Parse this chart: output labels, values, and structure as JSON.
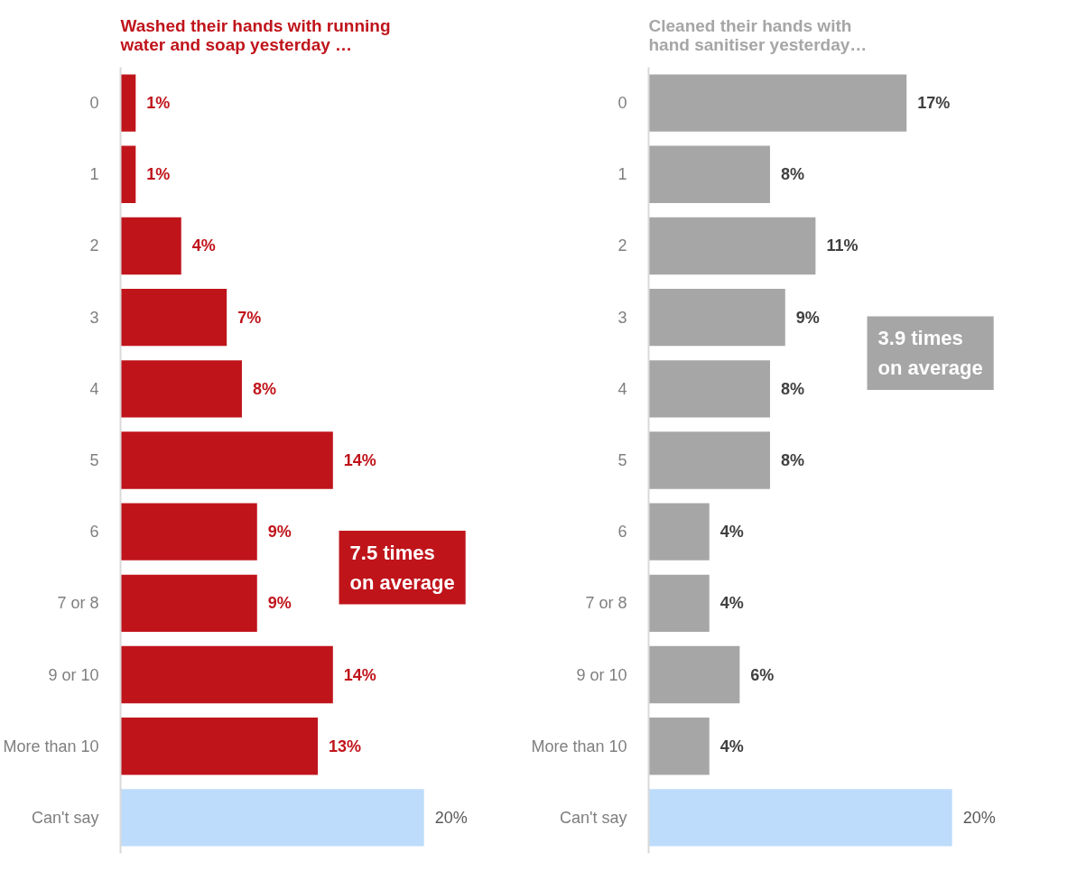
{
  "chart_data": [
    {
      "type": "bar",
      "orientation": "horizontal",
      "title": "Washed their hands with running water and soap yesterday …",
      "categories": [
        "0",
        "1",
        "2",
        "3",
        "4",
        "5",
        "6",
        "7 or 8",
        "9 or 10",
        "More than 10",
        "Can't say"
      ],
      "values": [
        1,
        1,
        4,
        7,
        8,
        14,
        9,
        9,
        14,
        13,
        20
      ],
      "colors": [
        "#c0141b",
        "#c0141b",
        "#c0141b",
        "#c0141b",
        "#c0141b",
        "#c0141b",
        "#c0141b",
        "#c0141b",
        "#c0141b",
        "#c0141b",
        "#bddcfb"
      ],
      "value_labels": [
        "1%",
        "1%",
        "4%",
        "7%",
        "8%",
        "14%",
        "9%",
        "9%",
        "14%",
        "13%",
        "20%"
      ],
      "tick_labels": "y",
      "annotations": [
        "7.5 times on average"
      ]
    },
    {
      "type": "bar",
      "orientation": "horizontal",
      "title": "Cleaned their hands with hand sanitiser yesterday…",
      "categories": [
        "0",
        "1",
        "2",
        "3",
        "4",
        "5",
        "6",
        "7 or 8",
        "9 or 10",
        "More than 10",
        "Can't say"
      ],
      "values": [
        17,
        8,
        11,
        9,
        8,
        8,
        4,
        4,
        6,
        4,
        20
      ],
      "colors": [
        "#a6a6a6",
        "#a6a6a6",
        "#a6a6a6",
        "#a6a6a6",
        "#a6a6a6",
        "#a6a6a6",
        "#a6a6a6",
        "#a6a6a6",
        "#a6a6a6",
        "#a6a6a6",
        "#bddcfb"
      ],
      "value_labels": [
        "17%",
        "8%",
        "11%",
        "9%",
        "8%",
        "8%",
        "4%",
        "4%",
        "6%",
        "4%",
        "20%"
      ],
      "tick_labels": "y",
      "annotations": [
        "3.9 times on average"
      ]
    }
  ]
}
